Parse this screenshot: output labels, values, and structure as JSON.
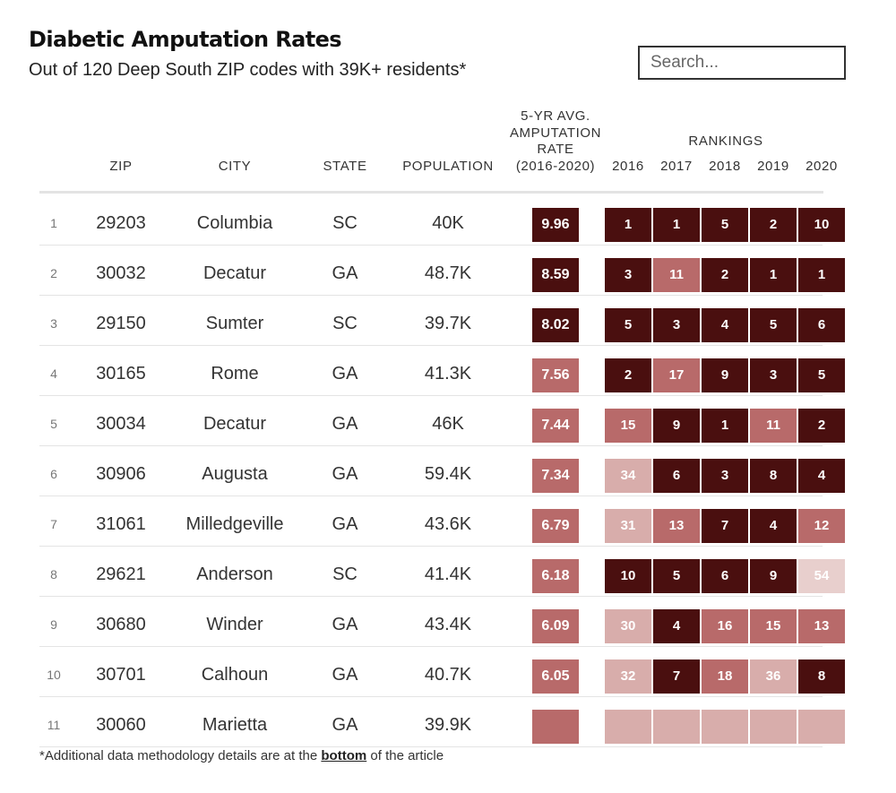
{
  "header": {
    "title": "Diabetic Amputation Rates",
    "subtitle": "Out of 120 Deep South ZIP codes with 39K+ residents*"
  },
  "search": {
    "placeholder": "Search..."
  },
  "columns": {
    "zip": "ZIP",
    "city": "CITY",
    "state": "STATE",
    "population": "POPULATION",
    "avg_line1": "5-YR AVG.",
    "avg_line2": "AMPUTATION",
    "avg_line3": "RATE",
    "avg_line4": "(2016-2020)",
    "rankings": "RANKINGS",
    "years": [
      "2016",
      "2017",
      "2018",
      "2019",
      "2020"
    ]
  },
  "colors": {
    "darkest": "#4a0f0f",
    "medium": "#b86a6a",
    "light": "#d8adab",
    "lightest": "#e8cfcd"
  },
  "rows": [
    {
      "rank": "1",
      "zip": "29203",
      "city": "Columbia",
      "state": "SC",
      "population": "40K",
      "rate": "9.96",
      "rankings": [
        "1",
        "1",
        "5",
        "2",
        "10"
      ]
    },
    {
      "rank": "2",
      "zip": "30032",
      "city": "Decatur",
      "state": "GA",
      "population": "48.7K",
      "rate": "8.59",
      "rankings": [
        "3",
        "11",
        "2",
        "1",
        "1"
      ]
    },
    {
      "rank": "3",
      "zip": "29150",
      "city": "Sumter",
      "state": "SC",
      "population": "39.7K",
      "rate": "8.02",
      "rankings": [
        "5",
        "3",
        "4",
        "5",
        "6"
      ]
    },
    {
      "rank": "4",
      "zip": "30165",
      "city": "Rome",
      "state": "GA",
      "population": "41.3K",
      "rate": "7.56",
      "rankings": [
        "2",
        "17",
        "9",
        "3",
        "5"
      ]
    },
    {
      "rank": "5",
      "zip": "30034",
      "city": "Decatur",
      "state": "GA",
      "population": "46K",
      "rate": "7.44",
      "rankings": [
        "15",
        "9",
        "1",
        "11",
        "2"
      ]
    },
    {
      "rank": "6",
      "zip": "30906",
      "city": "Augusta",
      "state": "GA",
      "population": "59.4K",
      "rate": "7.34",
      "rankings": [
        "34",
        "6",
        "3",
        "8",
        "4"
      ]
    },
    {
      "rank": "7",
      "zip": "31061",
      "city": "Milledgeville",
      "state": "GA",
      "population": "43.6K",
      "rate": "6.79",
      "rankings": [
        "31",
        "13",
        "7",
        "4",
        "12"
      ]
    },
    {
      "rank": "8",
      "zip": "29621",
      "city": "Anderson",
      "state": "SC",
      "population": "41.4K",
      "rate": "6.18",
      "rankings": [
        "10",
        "5",
        "6",
        "9",
        "54"
      ]
    },
    {
      "rank": "9",
      "zip": "30680",
      "city": "Winder",
      "state": "GA",
      "population": "43.4K",
      "rate": "6.09",
      "rankings": [
        "30",
        "4",
        "16",
        "15",
        "13"
      ]
    },
    {
      "rank": "10",
      "zip": "30701",
      "city": "Calhoun",
      "state": "GA",
      "population": "40.7K",
      "rate": "6.05",
      "rankings": [
        "32",
        "7",
        "18",
        "36",
        "8"
      ]
    },
    {
      "rank": "11",
      "zip": "30060",
      "city": "Marietta",
      "state": "GA",
      "population": "39.9K",
      "rate": "",
      "rankings": [
        "",
        "",
        "",
        "",
        ""
      ]
    }
  ],
  "footnote": {
    "before": "*Additional data methodology details are at the ",
    "link": "bottom",
    "after": " of the article"
  }
}
